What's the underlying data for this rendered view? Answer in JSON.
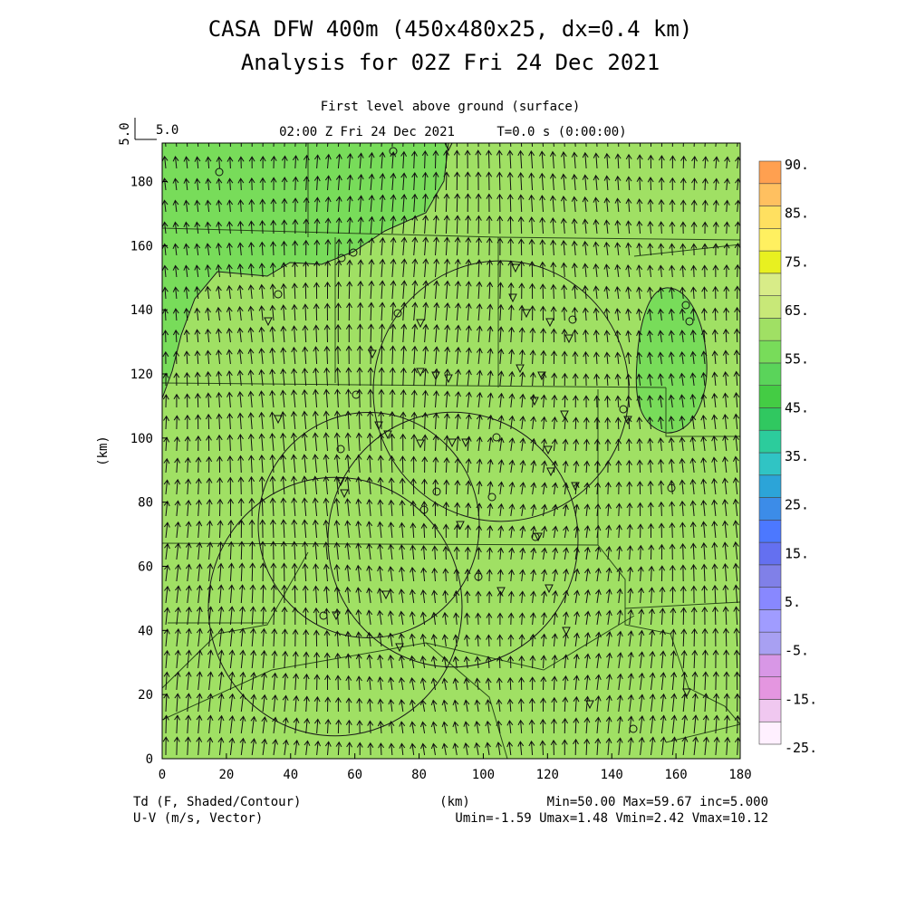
{
  "header": {
    "title_line1": "CASA DFW 400m (450x480x25, dx=0.4 km)",
    "title_line2": "Analysis for 02Z Fri 24 Dec 2021",
    "level_label": "First level above ground (surface)",
    "time_label": "02:00 Z Fri 24 Dec 2021",
    "tstep_label": "T=0.0 s (0:00:00)",
    "vector_ref_vertical": "5.0",
    "vector_ref_horizontal": "5.0"
  },
  "footer": {
    "field_label": "Td (F, Shaded/Contour)",
    "vector_label": "U-V (m/s, Vector)",
    "x_unit": "(km)",
    "stats_line1": "Min=50.00 Max=59.67 inc=5.000",
    "stats_line2": "Umin=-1.59 Umax=1.48 Vmin=2.42 Vmax=10.12"
  },
  "chart_data": {
    "type": "heatmap",
    "title": "CASA DFW 400m (450x480x25, dx=0.4 km)",
    "subtitle": "Analysis for 02Z Fri 24 Dec 2021",
    "xlabel": "(km)",
    "ylabel": "(km)",
    "xlim": [
      0,
      180
    ],
    "ylim": [
      0,
      192
    ],
    "x_ticks": [
      0,
      20,
      40,
      60,
      80,
      100,
      120,
      140,
      160,
      180
    ],
    "y_ticks": [
      0,
      20,
      40,
      60,
      80,
      100,
      120,
      140,
      160,
      180
    ],
    "field_min": 50.0,
    "field_max": 59.67,
    "contour_interval": 5.0,
    "colorbar_labels": [
      "90.",
      "85.",
      "75.",
      "65.",
      "55.",
      "45.",
      "35.",
      "25.",
      "15.",
      "5.",
      "-5.",
      "-15.",
      "-25."
    ],
    "colorbar_colors": [
      "#fff0ff",
      "#f0c8f0",
      "#e496e0",
      "#d897e6",
      "#a8a0f2",
      "#a09cff",
      "#8888ff",
      "#8080e8",
      "#6470f0",
      "#4c78ff",
      "#3c8ce8",
      "#2ca4d8",
      "#30c4c4",
      "#2ccc9c",
      "#30c860",
      "#44cc44",
      "#5ad45a",
      "#78dc5a",
      "#a0e064",
      "#c8e878",
      "#d8ec88",
      "#e8f020",
      "#fff060",
      "#ffe060",
      "#ffc060",
      "#ffa050"
    ],
    "regions": {
      "background_value": 57,
      "background_color": "#a0e064",
      "low_td_color": "#78dc5a",
      "low_td_value": 52
    },
    "wind": {
      "u_range": [
        -1.59,
        1.48
      ],
      "v_range": [
        2.42,
        10.12
      ],
      "reference_vector": 5.0,
      "dominant_direction": "northward"
    }
  }
}
